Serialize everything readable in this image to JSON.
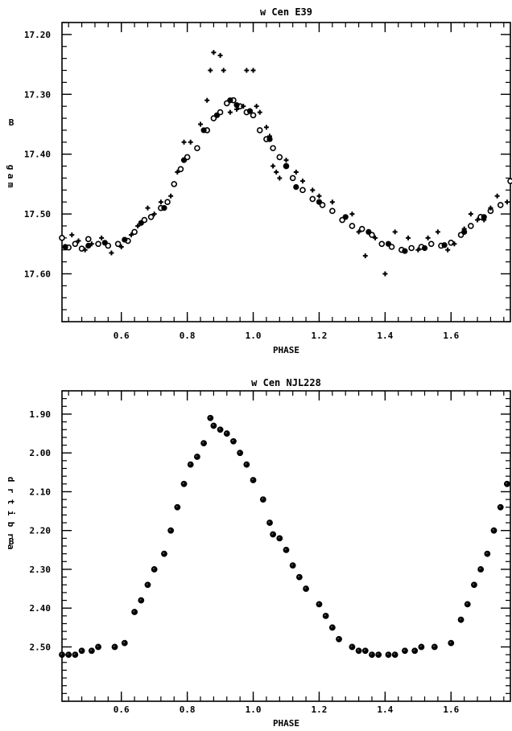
{
  "chart_data": [
    {
      "type": "scatter",
      "title": "w Cen E39",
      "xlabel": "PHASE",
      "ylabel_prefix": "B",
      "ylabel_stack": [
        "m",
        "a",
        "g"
      ],
      "xlim": [
        0.42,
        1.78
      ],
      "ylim": [
        17.68,
        17.18
      ],
      "y_inverted": true,
      "x_ticks": [
        0.6,
        0.8,
        1.0,
        1.2,
        1.4,
        1.6
      ],
      "x_tick_labels": [
        "0.6",
        "0.8",
        "1.0",
        "1.2",
        "1.4",
        "1.6"
      ],
      "y_ticks": [
        17.2,
        17.3,
        17.4,
        17.5,
        17.6
      ],
      "y_tick_labels": [
        "17.20",
        "17.30",
        "17.40",
        "17.50",
        "17.60"
      ],
      "series": [
        {
          "marker": "circle-open",
          "points": [
            [
              0.42,
              17.54
            ],
            [
              0.44,
              17.556
            ],
            [
              0.46,
              17.55
            ],
            [
              0.48,
              17.558
            ],
            [
              0.5,
              17.542
            ],
            [
              0.53,
              17.55
            ],
            [
              0.56,
              17.553
            ],
            [
              0.59,
              17.55
            ],
            [
              0.62,
              17.545
            ],
            [
              0.64,
              17.53
            ],
            [
              0.67,
              17.51
            ],
            [
              0.69,
              17.505
            ],
            [
              0.72,
              17.49
            ],
            [
              0.74,
              17.48
            ],
            [
              0.76,
              17.45
            ],
            [
              0.78,
              17.425
            ],
            [
              0.8,
              17.405
            ],
            [
              0.83,
              17.39
            ],
            [
              0.86,
              17.36
            ],
            [
              0.88,
              17.34
            ],
            [
              0.9,
              17.33
            ],
            [
              0.92,
              17.315
            ],
            [
              0.94,
              17.31
            ],
            [
              0.96,
              17.32
            ],
            [
              0.98,
              17.33
            ],
            [
              1.0,
              17.335
            ],
            [
              1.02,
              17.36
            ],
            [
              1.04,
              17.375
            ],
            [
              1.06,
              17.39
            ],
            [
              1.08,
              17.405
            ],
            [
              1.1,
              17.42
            ],
            [
              1.12,
              17.44
            ],
            [
              1.15,
              17.46
            ],
            [
              1.18,
              17.475
            ],
            [
              1.21,
              17.485
            ],
            [
              1.24,
              17.495
            ],
            [
              1.27,
              17.51
            ],
            [
              1.3,
              17.52
            ],
            [
              1.33,
              17.525
            ],
            [
              1.36,
              17.535
            ],
            [
              1.39,
              17.55
            ],
            [
              1.42,
              17.555
            ],
            [
              1.45,
              17.56
            ],
            [
              1.48,
              17.557
            ],
            [
              1.51,
              17.555
            ],
            [
              1.54,
              17.55
            ],
            [
              1.57,
              17.553
            ],
            [
              1.6,
              17.548
            ],
            [
              1.63,
              17.535
            ],
            [
              1.66,
              17.52
            ],
            [
              1.69,
              17.505
            ],
            [
              1.72,
              17.495
            ],
            [
              1.75,
              17.485
            ],
            [
              1.78,
              17.445
            ]
          ]
        },
        {
          "marker": "filled",
          "points": [
            [
              0.43,
              17.555
            ],
            [
              0.5,
              17.553
            ],
            [
              0.55,
              17.548
            ],
            [
              0.61,
              17.543
            ],
            [
              0.66,
              17.515
            ],
            [
              0.73,
              17.49
            ],
            [
              0.79,
              17.41
            ],
            [
              0.85,
              17.36
            ],
            [
              0.89,
              17.335
            ],
            [
              0.93,
              17.31
            ],
            [
              0.95,
              17.318
            ],
            [
              0.99,
              17.328
            ],
            [
              1.05,
              17.375
            ],
            [
              1.1,
              17.42
            ],
            [
              1.13,
              17.455
            ],
            [
              1.2,
              17.48
            ],
            [
              1.28,
              17.505
            ],
            [
              1.35,
              17.53
            ],
            [
              1.41,
              17.55
            ],
            [
              1.46,
              17.562
            ],
            [
              1.52,
              17.557
            ],
            [
              1.58,
              17.552
            ],
            [
              1.64,
              17.53
            ],
            [
              1.7,
              17.505
            ]
          ]
        },
        {
          "marker": "cross",
          "points": [
            [
              0.45,
              17.535
            ],
            [
              0.47,
              17.545
            ],
            [
              0.49,
              17.56
            ],
            [
              0.51,
              17.55
            ],
            [
              0.54,
              17.54
            ],
            [
              0.57,
              17.565
            ],
            [
              0.6,
              17.555
            ],
            [
              0.63,
              17.535
            ],
            [
              0.65,
              17.52
            ],
            [
              0.68,
              17.49
            ],
            [
              0.7,
              17.5
            ],
            [
              0.72,
              17.48
            ],
            [
              0.75,
              17.47
            ],
            [
              0.77,
              17.43
            ],
            [
              0.79,
              17.38
            ],
            [
              0.81,
              17.38
            ],
            [
              0.84,
              17.35
            ],
            [
              0.86,
              17.31
            ],
            [
              0.87,
              17.26
            ],
            [
              0.88,
              17.23
            ],
            [
              0.9,
              17.235
            ],
            [
              0.91,
              17.26
            ],
            [
              0.93,
              17.33
            ],
            [
              0.95,
              17.325
            ],
            [
              0.97,
              17.32
            ],
            [
              0.98,
              17.26
            ],
            [
              1.0,
              17.26
            ],
            [
              1.01,
              17.32
            ],
            [
              1.02,
              17.33
            ],
            [
              1.04,
              17.355
            ],
            [
              1.05,
              17.37
            ],
            [
              1.06,
              17.42
            ],
            [
              1.07,
              17.43
            ],
            [
              1.08,
              17.44
            ],
            [
              1.1,
              17.41
            ],
            [
              1.13,
              17.43
            ],
            [
              1.15,
              17.445
            ],
            [
              1.18,
              17.46
            ],
            [
              1.2,
              17.47
            ],
            [
              1.24,
              17.48
            ],
            [
              1.3,
              17.5
            ],
            [
              1.32,
              17.53
            ],
            [
              1.34,
              17.57
            ],
            [
              1.37,
              17.54
            ],
            [
              1.4,
              17.6
            ],
            [
              1.43,
              17.53
            ],
            [
              1.47,
              17.54
            ],
            [
              1.5,
              17.56
            ],
            [
              1.53,
              17.54
            ],
            [
              1.56,
              17.53
            ],
            [
              1.59,
              17.56
            ],
            [
              1.61,
              17.55
            ],
            [
              1.64,
              17.525
            ],
            [
              1.66,
              17.5
            ],
            [
              1.68,
              17.51
            ],
            [
              1.7,
              17.51
            ],
            [
              1.72,
              17.49
            ],
            [
              1.74,
              17.47
            ],
            [
              1.77,
              17.48
            ]
          ]
        }
      ]
    },
    {
      "type": "scatter",
      "title": "w Cen NJL228",
      "xlabel": "PHASE",
      "ylabel_prefix": "B",
      "ylabel_stack": [
        "a",
        "r",
        "b",
        "i",
        "t",
        "r",
        "d"
      ],
      "xlim": [
        0.42,
        1.78
      ],
      "ylim": [
        2.64,
        1.84
      ],
      "y_inverted": true,
      "x_ticks": [
        0.6,
        0.8,
        1.0,
        1.2,
        1.4,
        1.6
      ],
      "x_tick_labels": [
        "0.6",
        "0.8",
        "1.0",
        "1.2",
        "1.4",
        "1.6"
      ],
      "y_ticks": [
        1.9,
        2.0,
        2.1,
        2.2,
        2.3,
        2.4,
        2.5
      ],
      "y_tick_labels": [
        "1.90",
        "2.00",
        "2.10",
        "2.20",
        "2.30",
        "2.40",
        "2.50"
      ],
      "series": [
        {
          "marker": "filled",
          "points": [
            [
              0.42,
              2.52
            ],
            [
              0.44,
              2.52
            ],
            [
              0.46,
              2.52
            ],
            [
              0.48,
              2.51
            ],
            [
              0.51,
              2.51
            ],
            [
              0.53,
              2.5
            ],
            [
              0.58,
              2.5
            ],
            [
              0.61,
              2.49
            ],
            [
              0.64,
              2.41
            ],
            [
              0.66,
              2.38
            ],
            [
              0.68,
              2.34
            ],
            [
              0.7,
              2.3
            ],
            [
              0.73,
              2.26
            ],
            [
              0.75,
              2.2
            ],
            [
              0.77,
              2.14
            ],
            [
              0.79,
              2.08
            ],
            [
              0.81,
              2.03
            ],
            [
              0.83,
              2.01
            ],
            [
              0.85,
              1.975
            ],
            [
              0.87,
              1.91
            ],
            [
              0.88,
              1.93
            ],
            [
              0.9,
              1.94
            ],
            [
              0.92,
              1.95
            ],
            [
              0.94,
              1.97
            ],
            [
              0.96,
              2.0
            ],
            [
              0.98,
              2.03
            ],
            [
              1.0,
              2.07
            ],
            [
              1.03,
              2.12
            ],
            [
              1.05,
              2.18
            ],
            [
              1.06,
              2.21
            ],
            [
              1.08,
              2.22
            ],
            [
              1.1,
              2.25
            ],
            [
              1.12,
              2.29
            ],
            [
              1.14,
              2.32
            ],
            [
              1.16,
              2.35
            ],
            [
              1.2,
              2.39
            ],
            [
              1.22,
              2.42
            ],
            [
              1.24,
              2.45
            ],
            [
              1.26,
              2.48
            ],
            [
              1.3,
              2.5
            ],
            [
              1.32,
              2.51
            ],
            [
              1.34,
              2.51
            ],
            [
              1.36,
              2.52
            ],
            [
              1.38,
              2.52
            ],
            [
              1.41,
              2.52
            ],
            [
              1.43,
              2.52
            ],
            [
              1.46,
              2.51
            ],
            [
              1.49,
              2.51
            ],
            [
              1.51,
              2.5
            ],
            [
              1.55,
              2.5
            ],
            [
              1.6,
              2.49
            ],
            [
              1.63,
              2.43
            ],
            [
              1.65,
              2.39
            ],
            [
              1.67,
              2.34
            ],
            [
              1.69,
              2.3
            ],
            [
              1.71,
              2.26
            ],
            [
              1.73,
              2.2
            ],
            [
              1.75,
              2.14
            ],
            [
              1.77,
              2.08
            ]
          ]
        }
      ]
    }
  ]
}
